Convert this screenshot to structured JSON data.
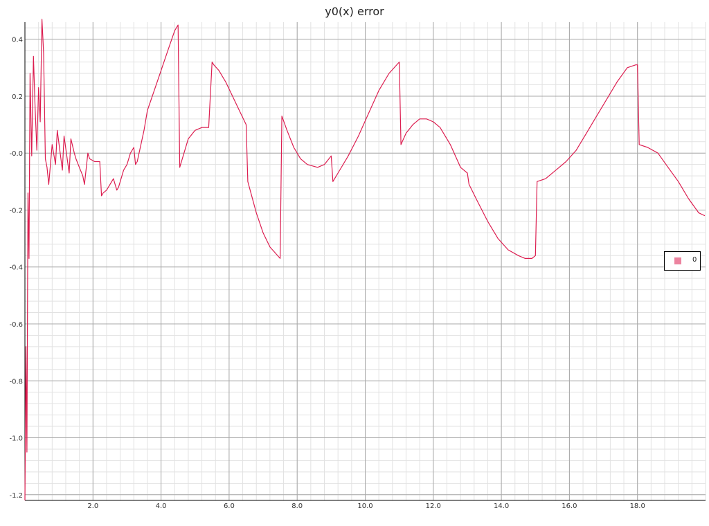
{
  "chart_data": {
    "type": "line",
    "title": "y0(x) error",
    "xlabel": "",
    "ylabel": "",
    "xlim": [
      0,
      20
    ],
    "ylim": [
      -1.22,
      0.46
    ],
    "x_ticks": [
      2,
      4,
      6,
      8,
      10,
      12,
      14,
      16,
      18
    ],
    "x_tick_labels": [
      "2.0",
      "4.0",
      "6.0",
      "8.0",
      "10.0",
      "12.0",
      "14.0",
      "16.0",
      "18.0"
    ],
    "y_ticks": [
      0.4,
      0.2,
      0.0,
      -0.2,
      -0.4,
      -0.6,
      -0.8,
      -1.0,
      -1.2
    ],
    "y_tick_labels": [
      "0.4",
      "0.2",
      "-0.0",
      "-0.2",
      "-0.4",
      "-0.6",
      "-0.8",
      "-1.0",
      "-1.2"
    ],
    "grid": true,
    "legend_position": "right",
    "series": [
      {
        "name": "0",
        "color": "#dc1e50",
        "x": [
          0.0,
          0.03,
          0.06,
          0.09,
          0.12,
          0.15,
          0.2,
          0.25,
          0.3,
          0.35,
          0.4,
          0.45,
          0.5,
          0.55,
          0.6,
          0.65,
          0.7,
          0.8,
          0.9,
          0.95,
          1.1,
          1.15,
          1.3,
          1.35,
          1.45,
          1.5,
          1.6,
          1.7,
          1.75,
          1.85,
          1.9,
          2.05,
          2.1,
          2.2,
          2.25,
          2.3,
          2.4,
          2.5,
          2.6,
          2.7,
          2.75,
          2.9,
          3.0,
          3.1,
          3.2,
          3.25,
          3.3,
          3.5,
          3.6,
          3.8,
          4.0,
          4.2,
          4.4,
          4.5,
          4.55,
          4.8,
          5.0,
          5.2,
          5.4,
          5.5,
          5.55,
          5.7,
          5.9,
          6.1,
          6.3,
          6.5,
          6.55,
          6.8,
          7.0,
          7.2,
          7.5,
          7.55,
          7.7,
          7.9,
          8.1,
          8.3,
          8.6,
          8.8,
          9.0,
          9.05,
          9.2,
          9.5,
          9.8,
          10.1,
          10.4,
          10.7,
          11.0,
          11.05,
          11.2,
          11.4,
          11.6,
          11.8,
          12.0,
          12.2,
          12.5,
          12.8,
          13.0,
          13.05,
          13.3,
          13.6,
          13.9,
          14.2,
          14.5,
          14.7,
          14.9,
          15.0,
          15.05,
          15.3,
          15.6,
          15.9,
          16.2,
          16.5,
          16.8,
          17.1,
          17.4,
          17.7,
          17.95,
          18.0,
          18.05,
          18.3,
          18.6,
          18.9,
          19.2,
          19.5,
          19.8,
          19.98
        ],
        "y": [
          -1.22,
          -0.68,
          -1.05,
          -0.14,
          -0.37,
          0.28,
          -0.01,
          0.34,
          0.16,
          0.01,
          0.23,
          0.11,
          0.47,
          0.35,
          -0.02,
          -0.05,
          -0.11,
          0.03,
          -0.04,
          0.08,
          -0.06,
          0.06,
          -0.07,
          0.05,
          0.0,
          -0.02,
          -0.05,
          -0.08,
          -0.11,
          0.0,
          -0.02,
          -0.03,
          -0.03,
          -0.03,
          -0.15,
          -0.14,
          -0.13,
          -0.11,
          -0.09,
          -0.13,
          -0.12,
          -0.06,
          -0.04,
          0.0,
          0.02,
          -0.04,
          -0.03,
          0.08,
          0.15,
          0.22,
          0.29,
          0.36,
          0.43,
          0.45,
          -0.05,
          0.05,
          0.08,
          0.09,
          0.09,
          0.32,
          0.31,
          0.29,
          0.25,
          0.2,
          0.15,
          0.1,
          -0.1,
          -0.21,
          -0.28,
          -0.33,
          -0.37,
          0.13,
          0.08,
          0.02,
          -0.02,
          -0.04,
          -0.05,
          -0.04,
          -0.01,
          -0.1,
          -0.07,
          -0.01,
          0.06,
          0.14,
          0.22,
          0.28,
          0.32,
          0.03,
          0.07,
          0.1,
          0.12,
          0.12,
          0.11,
          0.09,
          0.03,
          -0.05,
          -0.07,
          -0.11,
          -0.17,
          -0.24,
          -0.3,
          -0.34,
          -0.36,
          -0.37,
          -0.37,
          -0.36,
          -0.1,
          -0.09,
          -0.06,
          -0.03,
          0.01,
          0.07,
          0.13,
          0.19,
          0.25,
          0.3,
          0.31,
          0.31,
          0.03,
          0.02,
          0.0,
          -0.05,
          -0.1,
          -0.16,
          -0.21,
          -0.22
        ]
      }
    ]
  }
}
